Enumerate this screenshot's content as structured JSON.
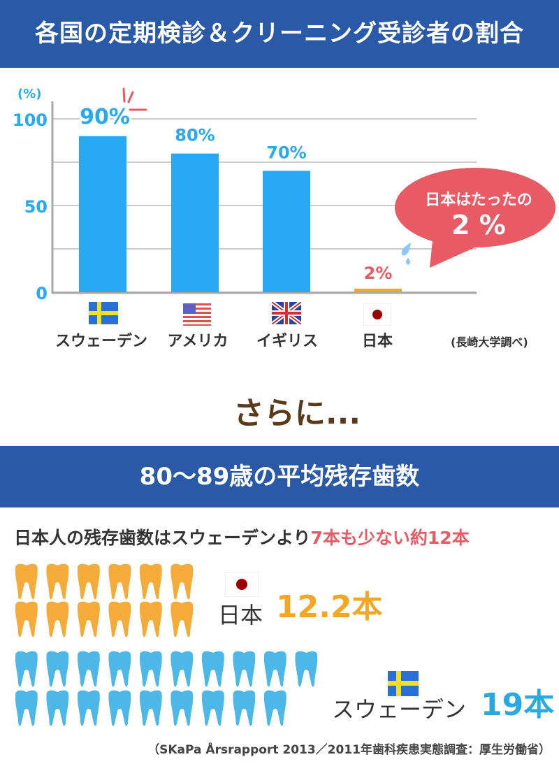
{
  "title": "各国の定期検診＆クリーニング受診者の割合",
  "chart_data": {
    "type": "bar",
    "ylabel": "(%)",
    "ylim": [
      0,
      100
    ],
    "yticks": [
      0,
      50,
      100
    ],
    "grid": true,
    "categories": [
      "スウェーデン",
      "アメリカ",
      "イギリス",
      "日本"
    ],
    "values": [
      90,
      80,
      70,
      2
    ],
    "data_labels": [
      "90%",
      "80%",
      "70%",
      "2%"
    ],
    "colors": [
      "#29a8f5",
      "#29a8f5",
      "#29a8f5",
      "#f5a623"
    ],
    "source": "(長崎大学調べ)",
    "callout": {
      "line1": "日本はたったの",
      "line2": "2 %",
      "color": "#e85a64"
    }
  },
  "transition": "さらに...",
  "section2": {
    "title": "80〜89歳の平均残存歯数",
    "lead_prefix": "日本人の残存歯数はスウェーデンより",
    "lead_highlight": "7本も少ない約12本",
    "japan": {
      "label": "日本",
      "value": "12.2本",
      "teeth": 12,
      "color": "#f5ab3a"
    },
    "sweden": {
      "label": "スウェーデン",
      "value": "19本",
      "teeth": 19,
      "color": "#4db8e8"
    },
    "source": "（SKaPa Årsrapport 2013／2011年歯科疾患実態調査：厚生労働省）"
  }
}
